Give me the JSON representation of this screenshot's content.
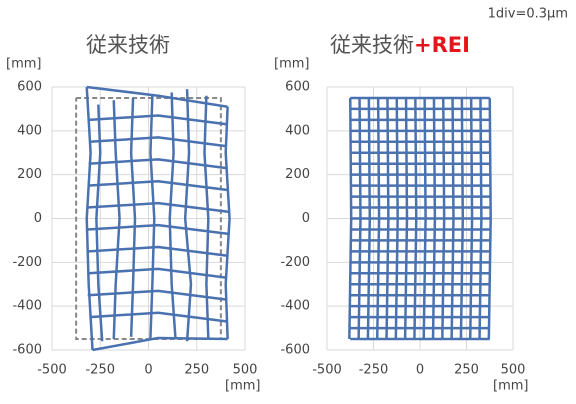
{
  "note_text": "1div=0.3μm",
  "chart_data": [
    {
      "type": "line",
      "title": "従来技術",
      "ylabel": "[mm]",
      "xlabel": "[mm]",
      "xlim": [
        -500,
        500
      ],
      "xticks": [
        -500,
        -250,
        0,
        250,
        500
      ],
      "ylim": [
        -600,
        600
      ],
      "yticks": [
        -600,
        -400,
        -200,
        0,
        200,
        400,
        600
      ],
      "grid": true,
      "color": "#4a72b0",
      "reference": {
        "color": "#888888",
        "dashed": true,
        "x": [
          -375,
          375,
          375,
          -375,
          -375
        ],
        "y": [
          550,
          550,
          -550,
          -550,
          550
        ]
      },
      "series": [
        {
          "x": [
            -320,
            -300,
            -320,
            -310,
            -290
          ],
          "y": [
            600,
            300,
            0,
            -300,
            -600
          ]
        },
        {
          "x": [
            -260,
            -250,
            -270,
            -260,
            -240
          ],
          "y": [
            520,
            300,
            0,
            -300,
            -560
          ]
        },
        {
          "x": [
            -180,
            -170,
            -150,
            -170,
            -180
          ],
          "y": [
            540,
            300,
            0,
            -300,
            -550
          ]
        },
        {
          "x": [
            -80,
            -90,
            -70,
            -80,
            -90
          ],
          "y": [
            550,
            300,
            0,
            -300,
            -540
          ]
        },
        {
          "x": [
            20,
            10,
            30,
            20,
            10
          ],
          "y": [
            560,
            300,
            0,
            -300,
            -545
          ]
        },
        {
          "x": [
            120,
            130,
            110,
            120,
            140
          ],
          "y": [
            575,
            300,
            0,
            -300,
            -550
          ]
        },
        {
          "x": [
            200,
            210,
            190,
            220,
            200
          ],
          "y": [
            590,
            300,
            0,
            -300,
            -560
          ]
        },
        {
          "x": [
            300,
            290,
            310,
            300,
            310
          ],
          "y": [
            560,
            300,
            0,
            -300,
            -550
          ]
        },
        {
          "x": [
            410,
            400,
            420,
            400,
            410
          ],
          "y": [
            510,
            300,
            0,
            -300,
            -550
          ]
        },
        {
          "x": [
            -320,
            50,
            410
          ],
          "y": [
            600,
            560,
            510
          ]
        },
        {
          "x": [
            -310,
            50,
            405
          ],
          "y": [
            450,
            470,
            430
          ]
        },
        {
          "x": [
            -305,
            50,
            402
          ],
          "y": [
            350,
            370,
            330
          ]
        },
        {
          "x": [
            -310,
            50,
            405
          ],
          "y": [
            250,
            270,
            230
          ]
        },
        {
          "x": [
            -315,
            50,
            410
          ],
          "y": [
            150,
            170,
            130
          ]
        },
        {
          "x": [
            -320,
            50,
            418
          ],
          "y": [
            50,
            70,
            30
          ]
        },
        {
          "x": [
            -315,
            50,
            415
          ],
          "y": [
            -50,
            -30,
            -70
          ]
        },
        {
          "x": [
            -310,
            50,
            410
          ],
          "y": [
            -150,
            -130,
            -170
          ]
        },
        {
          "x": [
            -310,
            50,
            402
          ],
          "y": [
            -250,
            -230,
            -270
          ]
        },
        {
          "x": [
            -315,
            50,
            405
          ],
          "y": [
            -350,
            -330,
            -370
          ]
        },
        {
          "x": [
            -305,
            50,
            408
          ],
          "y": [
            -450,
            -430,
            -470
          ]
        },
        {
          "x": [
            -290,
            50,
            410
          ],
          "y": [
            -600,
            -545,
            -550
          ]
        }
      ]
    },
    {
      "type": "line",
      "title": "従来技術",
      "title_suffix": "+REI",
      "ylabel": "[mm]",
      "xlabel": "[mm]",
      "xlim": [
        -500,
        500
      ],
      "xticks": [
        -500,
        -250,
        0,
        250,
        500
      ],
      "ylim": [
        -600,
        600
      ],
      "yticks": [
        -600,
        -400,
        -200,
        0,
        200,
        400,
        600
      ],
      "grid": true,
      "color": "#4a72b0",
      "series": [
        {
          "x": [
            -375,
            -370,
            -380
          ],
          "y": [
            550,
            0,
            -550
          ]
        },
        {
          "x": [
            -325,
            -320,
            -330
          ],
          "y": [
            550,
            0,
            -550
          ]
        },
        {
          "x": [
            -275,
            -270,
            -280
          ],
          "y": [
            550,
            0,
            -550
          ]
        },
        {
          "x": [
            -225,
            -220,
            -230
          ],
          "y": [
            550,
            0,
            -550
          ]
        },
        {
          "x": [
            -175,
            -170,
            -180
          ],
          "y": [
            550,
            0,
            -550
          ]
        },
        {
          "x": [
            -125,
            -120,
            -130
          ],
          "y": [
            550,
            0,
            -550
          ]
        },
        {
          "x": [
            -75,
            -70,
            -80
          ],
          "y": [
            550,
            0,
            -550
          ]
        },
        {
          "x": [
            -25,
            -20,
            -30
          ],
          "y": [
            550,
            0,
            -550
          ]
        },
        {
          "x": [
            25,
            30,
            20
          ],
          "y": [
            550,
            0,
            -550
          ]
        },
        {
          "x": [
            75,
            80,
            70
          ],
          "y": [
            550,
            0,
            -550
          ]
        },
        {
          "x": [
            125,
            130,
            120
          ],
          "y": [
            550,
            0,
            -550
          ]
        },
        {
          "x": [
            175,
            180,
            170
          ],
          "y": [
            550,
            0,
            -550
          ]
        },
        {
          "x": [
            225,
            230,
            220
          ],
          "y": [
            550,
            0,
            -550
          ]
        },
        {
          "x": [
            275,
            280,
            270
          ],
          "y": [
            550,
            0,
            -550
          ]
        },
        {
          "x": [
            325,
            330,
            320
          ],
          "y": [
            550,
            0,
            -550
          ]
        },
        {
          "x": [
            375,
            380,
            370
          ],
          "y": [
            550,
            0,
            -550
          ]
        },
        {
          "x": [
            -375,
            375
          ],
          "y": [
            550,
            550
          ]
        },
        {
          "x": [
            -375,
            375
          ],
          "y": [
            500,
            500
          ]
        },
        {
          "x": [
            -375,
            375
          ],
          "y": [
            450,
            450
          ]
        },
        {
          "x": [
            -375,
            375
          ],
          "y": [
            400,
            400
          ]
        },
        {
          "x": [
            -375,
            375
          ],
          "y": [
            350,
            350
          ]
        },
        {
          "x": [
            -375,
            375
          ],
          "y": [
            300,
            300
          ]
        },
        {
          "x": [
            -375,
            375
          ],
          "y": [
            250,
            250
          ]
        },
        {
          "x": [
            -375,
            375
          ],
          "y": [
            200,
            200
          ]
        },
        {
          "x": [
            -375,
            375
          ],
          "y": [
            150,
            150
          ]
        },
        {
          "x": [
            -375,
            375
          ],
          "y": [
            100,
            100
          ]
        },
        {
          "x": [
            -375,
            375
          ],
          "y": [
            50,
            50
          ]
        },
        {
          "x": [
            -375,
            375
          ],
          "y": [
            0,
            0
          ]
        },
        {
          "x": [
            -375,
            375
          ],
          "y": [
            -50,
            -50
          ]
        },
        {
          "x": [
            -375,
            375
          ],
          "y": [
            -100,
            -100
          ]
        },
        {
          "x": [
            -375,
            375
          ],
          "y": [
            -150,
            -150
          ]
        },
        {
          "x": [
            -375,
            375
          ],
          "y": [
            -200,
            -200
          ]
        },
        {
          "x": [
            -375,
            375
          ],
          "y": [
            -250,
            -250
          ]
        },
        {
          "x": [
            -375,
            375
          ],
          "y": [
            -300,
            -300
          ]
        },
        {
          "x": [
            -375,
            375
          ],
          "y": [
            -350,
            -350
          ]
        },
        {
          "x": [
            -375,
            375
          ],
          "y": [
            -400,
            -400
          ]
        },
        {
          "x": [
            -375,
            375
          ],
          "y": [
            -450,
            -450
          ]
        },
        {
          "x": [
            -375,
            375
          ],
          "y": [
            -500,
            -500
          ]
        },
        {
          "x": [
            -375,
            375
          ],
          "y": [
            -550,
            -550
          ]
        }
      ]
    }
  ]
}
